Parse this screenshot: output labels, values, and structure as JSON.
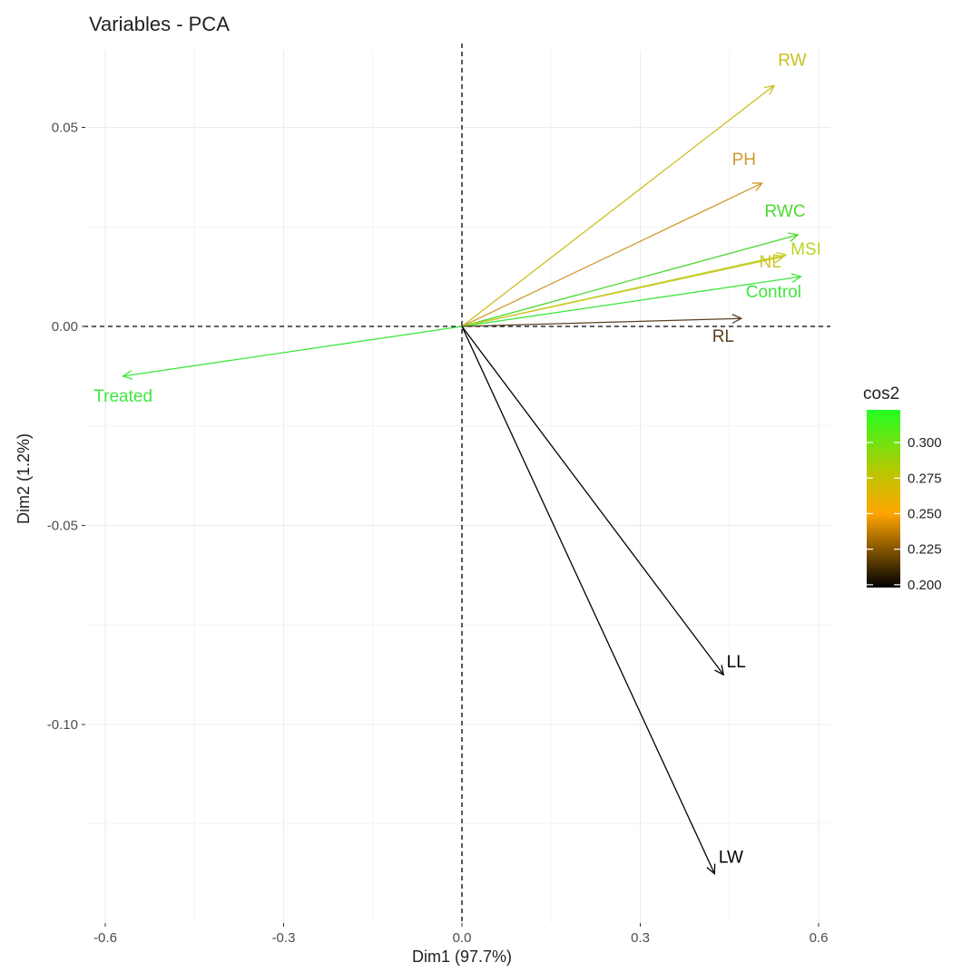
{
  "chart_data": {
    "type": "pca-variables-biplot",
    "title": "Variables - PCA",
    "xlabel": "Dim1 (97.7%)",
    "ylabel": "Dim2 (1.2%)",
    "xlim": [
      -0.6,
      0.6
    ],
    "ylim": [
      -0.14,
      0.07
    ],
    "x_ticks": [
      -0.6,
      -0.3,
      0.0,
      0.3,
      0.6
    ],
    "x_tick_labels": [
      "-0.6",
      "-0.3",
      "0.0",
      "0.3",
      "0.6"
    ],
    "y_ticks": [
      -0.1,
      -0.05,
      0.0,
      0.05
    ],
    "y_tick_labels": [
      "-0.10",
      "-0.05",
      "0.00",
      "0.05"
    ],
    "grid": true,
    "reference_lines": [
      "x = 0 (dashed)",
      "y = 0 (dashed)"
    ],
    "color_legend": {
      "title": "cos2",
      "placement": "right",
      "range": [
        0.198,
        0.323
      ],
      "ticks": [
        0.2,
        0.225,
        0.25,
        0.275,
        0.3
      ],
      "tick_labels": [
        "0.200",
        "0.225",
        "0.250",
        "0.275",
        "0.300"
      ],
      "gradient": [
        {
          "value": 0.198,
          "color": "#000000"
        },
        {
          "value": 0.25,
          "color": "#FFA500"
        },
        {
          "value": 0.28,
          "color": "#B8C800"
        },
        {
          "value": 0.323,
          "color": "#22FF22"
        }
      ]
    },
    "variables": [
      {
        "name": "RW",
        "x": 0.525,
        "y": 0.0605,
        "cos2": 0.285,
        "color": "#c8c020"
      },
      {
        "name": "PH",
        "x": 0.505,
        "y": 0.036,
        "cos2": 0.262,
        "color": "#d19a30"
      },
      {
        "name": "RWC",
        "x": 0.565,
        "y": 0.023,
        "cos2": 0.316,
        "color": "#4bd82e"
      },
      {
        "name": "MSI",
        "x": 0.545,
        "y": 0.018,
        "cos2": 0.296,
        "color": "#b8d623"
      },
      {
        "name": "NL",
        "x": 0.54,
        "y": 0.0175,
        "cos2": 0.28,
        "color": "#cfc62a"
      },
      {
        "name": "Control",
        "x": 0.57,
        "y": 0.0125,
        "cos2": 0.322,
        "color": "#3fe63f"
      },
      {
        "name": "RL",
        "x": 0.47,
        "y": 0.002,
        "cos2": 0.222,
        "color": "#5a4020"
      },
      {
        "name": "Treated",
        "x": -0.57,
        "y": -0.0125,
        "cos2": 0.322,
        "color": "#3fe63f"
      },
      {
        "name": "LL",
        "x": 0.44,
        "y": -0.0875,
        "cos2": 0.2,
        "color": "#000000"
      },
      {
        "name": "LW",
        "x": 0.425,
        "y": -0.1375,
        "cos2": 0.2,
        "color": "#000000"
      }
    ]
  }
}
